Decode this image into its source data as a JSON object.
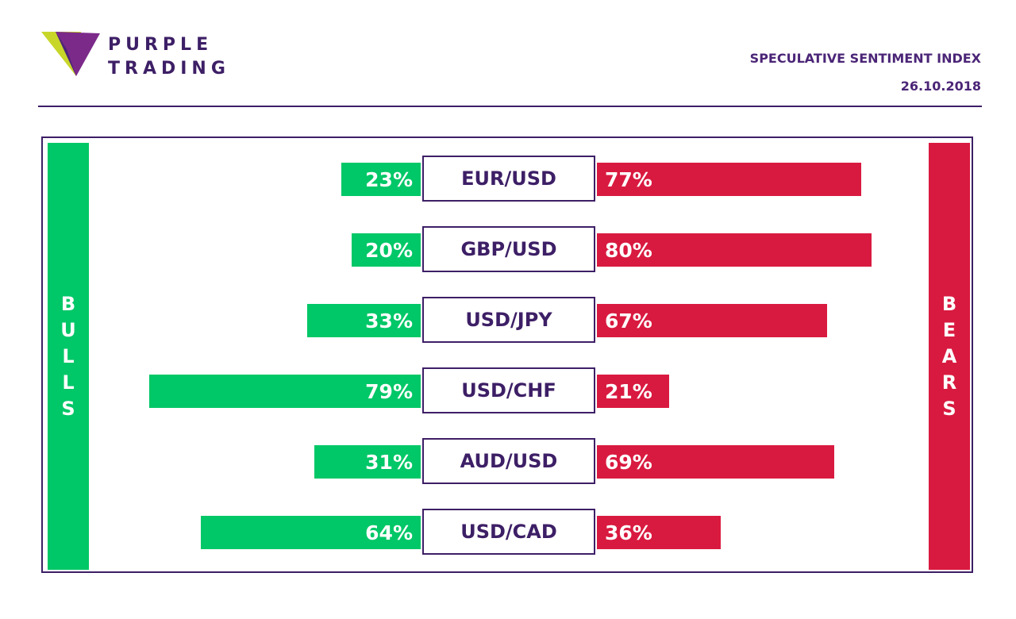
{
  "brand": {
    "line1": "PURPLE",
    "line2": "TRADING",
    "colors": {
      "purple": "#4b2577",
      "magenta": "#7b2a8a",
      "lime": "#c8d62a"
    }
  },
  "header": {
    "title": "SPECULATIVE SENTIMENT INDEX",
    "date": "26.10.2018"
  },
  "labels": {
    "bulls": "B\nU\nL\nL\nS",
    "bears": "B\nE\nA\nR\nS"
  },
  "colors": {
    "bulls": "#00c767",
    "bears": "#d91a40",
    "frame": "#3d1f66"
  },
  "chart_data": {
    "type": "bar",
    "categories": [
      "EUR/USD",
      "GBP/USD",
      "USD/JPY",
      "USD/CHF",
      "AUD/USD",
      "USD/CAD"
    ],
    "series": [
      {
        "name": "BULLS",
        "values": [
          23,
          20,
          33,
          79,
          31,
          64
        ],
        "labels": [
          "23%",
          "20%",
          "33%",
          "79%",
          "31%",
          "64%"
        ]
      },
      {
        "name": "BEARS",
        "values": [
          77,
          80,
          67,
          21,
          69,
          36
        ],
        "labels": [
          "77%",
          "80%",
          "67%",
          "21%",
          "69%",
          "36%"
        ]
      }
    ],
    "unit": "%",
    "ylim": [
      0,
      100
    ]
  }
}
